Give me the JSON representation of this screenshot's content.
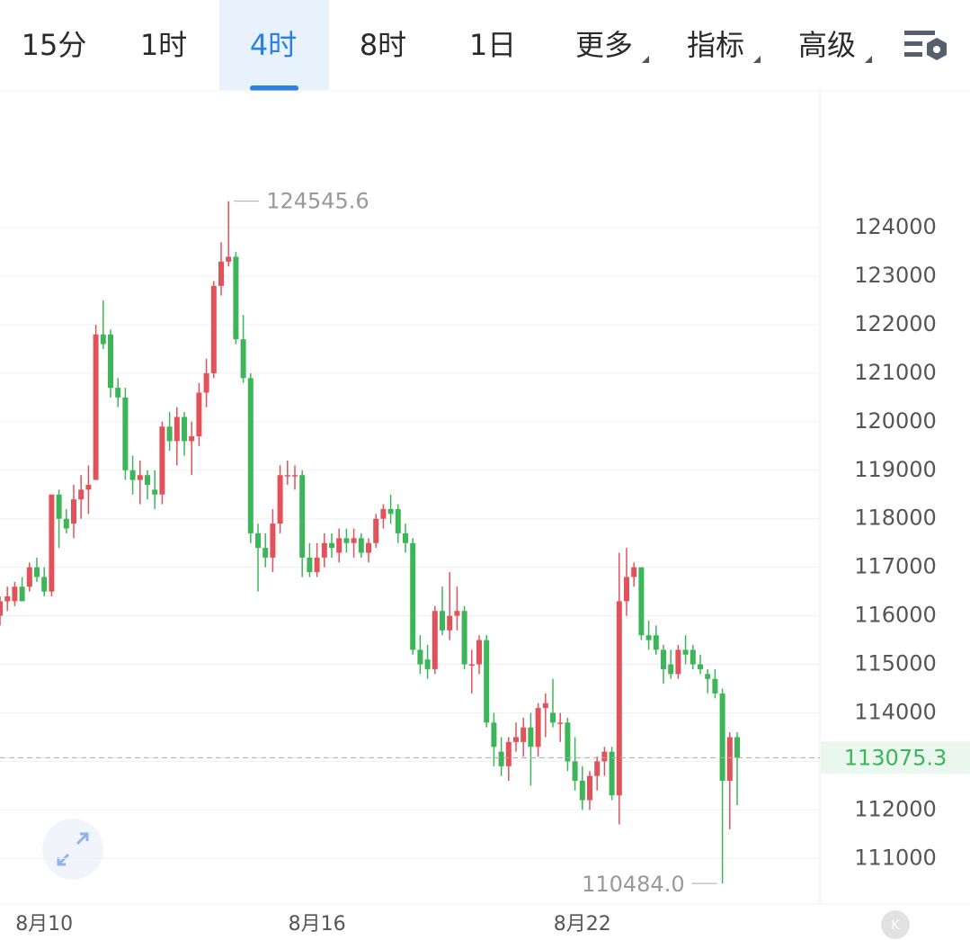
{
  "tabs": [
    "15分",
    "1时",
    "4时",
    "8时",
    "1日",
    "更多",
    "指标",
    "高级"
  ],
  "active_tab": 2,
  "chart_data": {
    "type": "candlestick",
    "categories": [
      null,
      null,
      null,
      null,
      null,
      null,
      "8月10",
      null,
      null,
      null,
      null,
      null,
      null,
      null,
      null,
      null,
      null,
      null,
      null,
      null,
      null,
      null,
      null,
      null,
      null,
      null,
      null,
      null,
      null,
      null,
      null,
      null,
      null,
      null,
      null,
      null,
      null,
      null,
      null,
      null,
      null,
      null,
      null,
      "8月16",
      null,
      null,
      null,
      null,
      null,
      null,
      null,
      null,
      null,
      null,
      null,
      null,
      null,
      null,
      null,
      null,
      null,
      null,
      null,
      null,
      null,
      null,
      null,
      null,
      null,
      null,
      null,
      null,
      null,
      null,
      null,
      null,
      null,
      null,
      null,
      "8月22",
      null,
      null,
      null,
      null,
      null,
      null,
      null,
      null,
      null,
      null,
      null,
      null,
      null,
      null,
      null,
      null,
      null,
      null,
      null,
      null,
      null
    ],
    "ohlc": [
      [
        116000,
        116400,
        115800,
        116300
      ],
      [
        116300,
        116600,
        116100,
        116400
      ],
      [
        116300,
        116700,
        116200,
        116600
      ],
      [
        116600,
        116800,
        116300,
        116300
      ],
      [
        116600,
        117100,
        116500,
        117000
      ],
      [
        117000,
        117200,
        116700,
        116800
      ],
      [
        116800,
        117000,
        116400,
        116500
      ],
      [
        116500,
        118500,
        116400,
        118500
      ],
      [
        118500,
        118600,
        117400,
        118000
      ],
      [
        118000,
        118200,
        117700,
        117800
      ],
      [
        117900,
        118700,
        117600,
        118400
      ],
      [
        118400,
        118900,
        118000,
        118600
      ],
      [
        118600,
        119100,
        118100,
        118700
      ],
      [
        118800,
        122000,
        118800,
        121800
      ],
      [
        121800,
        122500,
        121500,
        121600
      ],
      [
        121800,
        121900,
        120500,
        120700
      ],
      [
        120700,
        120900,
        120300,
        120500
      ],
      [
        120500,
        120700,
        118800,
        119000
      ],
      [
        119000,
        119300,
        118500,
        118800
      ],
      [
        118800,
        119200,
        118300,
        118900
      ],
      [
        118900,
        119000,
        118400,
        118700
      ],
      [
        118600,
        119000,
        118200,
        118500
      ],
      [
        118500,
        120000,
        118300,
        119900
      ],
      [
        119900,
        120200,
        119400,
        119600
      ],
      [
        119600,
        120300,
        119100,
        120100
      ],
      [
        120100,
        120200,
        119300,
        119600
      ],
      [
        119600,
        120000,
        118900,
        119700
      ],
      [
        119700,
        120800,
        119500,
        120600
      ],
      [
        120600,
        121300,
        120300,
        121000
      ],
      [
        121000,
        122900,
        120900,
        122800
      ],
      [
        122800,
        123700,
        122600,
        123300
      ],
      [
        123300,
        124545.6,
        123200,
        123400
      ],
      [
        123400,
        123500,
        121600,
        121700
      ],
      [
        121700,
        122200,
        120800,
        120900
      ],
      [
        120900,
        121000,
        117500,
        117700
      ],
      [
        117700,
        117900,
        116500,
        117400
      ],
      [
        117400,
        117700,
        117000,
        117200
      ],
      [
        117200,
        118200,
        116900,
        117900
      ],
      [
        117900,
        119100,
        117700,
        118900
      ],
      [
        118900,
        119200,
        118700,
        118900
      ],
      [
        118900,
        119100,
        118600,
        118900
      ],
      [
        118900,
        119000,
        116800,
        117200
      ],
      [
        117200,
        117500,
        116800,
        116900
      ],
      [
        116900,
        117500,
        116800,
        117200
      ],
      [
        117200,
        117700,
        117000,
        117500
      ],
      [
        117500,
        117700,
        117200,
        117400
      ],
      [
        117300,
        117800,
        117100,
        117600
      ],
      [
        117600,
        117800,
        117300,
        117500
      ],
      [
        117500,
        117800,
        117200,
        117600
      ],
      [
        117600,
        117700,
        117200,
        117300
      ],
      [
        117300,
        117600,
        117100,
        117500
      ],
      [
        117500,
        118100,
        117400,
        118000
      ],
      [
        118000,
        118300,
        117800,
        118200
      ],
      [
        118200,
        118500,
        117900,
        118100
      ],
      [
        118200,
        118300,
        117500,
        117700
      ],
      [
        117700,
        117900,
        117300,
        117500
      ],
      [
        117500,
        117600,
        115200,
        115300
      ],
      [
        115300,
        115600,
        114800,
        115000
      ],
      [
        115100,
        115400,
        114700,
        114900
      ],
      [
        114900,
        116200,
        114800,
        116100
      ],
      [
        116100,
        116600,
        115600,
        115700
      ],
      [
        115700,
        116900,
        115500,
        116000
      ],
      [
        116000,
        116600,
        115700,
        116100
      ],
      [
        116100,
        116200,
        114900,
        115000
      ],
      [
        115000,
        115300,
        114400,
        115000
      ],
      [
        115000,
        115600,
        114800,
        115500
      ],
      [
        115500,
        115600,
        113700,
        113800
      ],
      [
        113800,
        114000,
        112900,
        113300
      ],
      [
        113200,
        113500,
        112700,
        112900
      ],
      [
        112900,
        113500,
        112600,
        113400
      ],
      [
        113400,
        113800,
        113200,
        113500
      ],
      [
        113400,
        113900,
        113100,
        113700
      ],
      [
        113700,
        114000,
        112500,
        113300
      ],
      [
        113300,
        114200,
        113100,
        114100
      ],
      [
        114100,
        114400,
        113500,
        114200
      ],
      [
        114000,
        114700,
        113700,
        113800
      ],
      [
        113800,
        114000,
        113400,
        113800
      ],
      [
        113800,
        113900,
        112800,
        113000
      ],
      [
        113000,
        113500,
        112400,
        112600
      ],
      [
        112600,
        112900,
        112000,
        112200
      ],
      [
        112200,
        112800,
        112000,
        112700
      ],
      [
        112700,
        113100,
        112400,
        113000
      ],
      [
        113000,
        113300,
        112700,
        113200
      ],
      [
        113200,
        113300,
        112200,
        112300
      ],
      [
        112300,
        117300,
        111700,
        116300
      ],
      [
        116300,
        117400,
        116000,
        116800
      ],
      [
        116800,
        117100,
        116600,
        117000
      ],
      [
        117000,
        117000,
        115500,
        115600
      ],
      [
        115600,
        115900,
        115300,
        115500
      ],
      [
        115600,
        115800,
        115200,
        115300
      ],
      [
        115300,
        115400,
        114600,
        114900
      ],
      [
        115000,
        115300,
        114700,
        114800
      ],
      [
        114800,
        115400,
        114700,
        115300
      ],
      [
        115300,
        115600,
        115000,
        115200
      ],
      [
        115300,
        115400,
        114900,
        115000
      ],
      [
        115000,
        115200,
        114800,
        114900
      ],
      [
        114800,
        114900,
        114400,
        114700
      ],
      [
        114700,
        114900,
        114300,
        114400
      ],
      [
        114400,
        114500,
        110484,
        112600
      ],
      [
        112600,
        113600,
        111600,
        113500
      ],
      [
        113500,
        113600,
        112100,
        113075.3
      ]
    ],
    "up_color": "#e2525a",
    "down_color": "#3db559",
    "ylim": [
      110060,
      126820
    ],
    "yticks": [
      111000,
      112000,
      113000,
      114000,
      115000,
      116000,
      117000,
      118000,
      119000,
      120000,
      121000,
      122000,
      123000,
      124000
    ],
    "grid": true,
    "high": 124545.6,
    "low": {
      "value": 110484,
      "label": "110484.0"
    },
    "last": 113075.3
  }
}
